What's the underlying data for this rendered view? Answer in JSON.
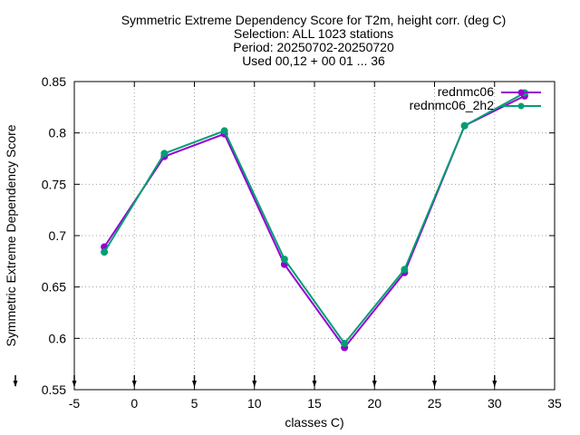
{
  "chart_data": {
    "type": "line",
    "title_lines": [
      "Symmetric Extreme Dependency Score  for T2m, height corr. (deg C)",
      "Selection: ALL   1023 stations",
      "Period: 20250702-20250720",
      "Used 00,12 + 00 01 ... 36"
    ],
    "xlabel": "classes C)",
    "ylabel": "Symmetric Extreme Dependency Score",
    "xlim": [
      -5,
      35
    ],
    "ylim": [
      0.55,
      0.85
    ],
    "xticks": [
      -5,
      0,
      5,
      10,
      15,
      20,
      25,
      30,
      35
    ],
    "yticks": [
      0.55,
      0.6,
      0.65,
      0.7,
      0.75,
      0.8,
      0.85
    ],
    "xtick_labels": [
      "-5",
      "0",
      "5",
      "10",
      "15",
      "20",
      "25",
      "30",
      "35"
    ],
    "ytick_labels": [
      "0.55",
      "0.6",
      "0.65",
      "0.7",
      "0.75",
      "0.8",
      "0.85"
    ],
    "grid": true,
    "legend_position": "top-right",
    "x": [
      -2.5,
      2.5,
      7.5,
      12.5,
      17.5,
      22.5,
      27.5,
      32.5
    ],
    "series": [
      {
        "name": "rednmc06",
        "color": "#9400d3",
        "values": [
          0.689,
          0.777,
          0.799,
          0.672,
          0.591,
          0.664,
          0.807,
          0.836
        ]
      },
      {
        "name": "rednmc06_2h2",
        "color": "#009e73",
        "values": [
          0.684,
          0.78,
          0.802,
          0.677,
          0.595,
          0.667,
          0.807,
          0.839
        ]
      }
    ],
    "bottom_markers_x": [
      -5,
      0,
      5,
      10,
      15,
      20,
      25,
      30
    ]
  }
}
